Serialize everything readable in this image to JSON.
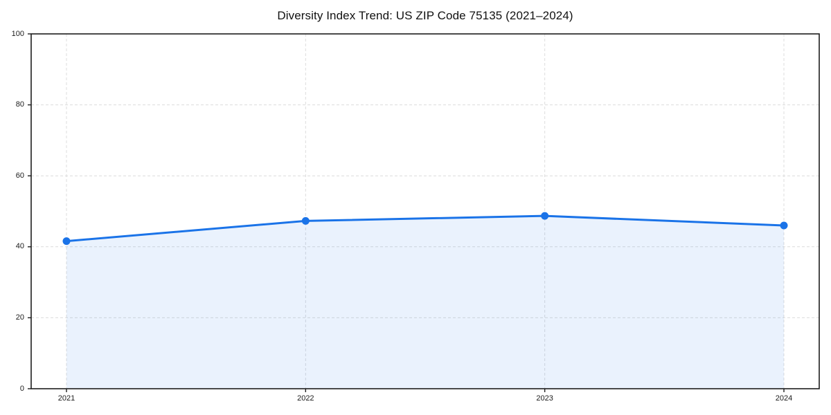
{
  "chart_data": {
    "type": "area",
    "title": "Diversity Index Trend: US ZIP Code 75135 (2021–2024)",
    "categories": [
      "2021",
      "2022",
      "2023",
      "2024"
    ],
    "series": [
      {
        "name": "Diversity Index",
        "values": [
          41.6,
          47.3,
          48.7,
          46.0
        ]
      }
    ],
    "xlabel": "",
    "ylabel": "",
    "ylim": [
      0,
      100
    ],
    "y_ticks": [
      0,
      20,
      40,
      60,
      80,
      100
    ],
    "grid": "dashed",
    "legend_position": "none",
    "colors": {
      "line": "#1a73e8",
      "marker": "#1a73e8",
      "area_fill": "rgba(26,115,232,0.09)",
      "grid": "#dcdcdc",
      "axis": "#1c1c1c",
      "tick_text": "#1a1a1a"
    },
    "line_width": 3,
    "marker_radius": 5.5
  }
}
